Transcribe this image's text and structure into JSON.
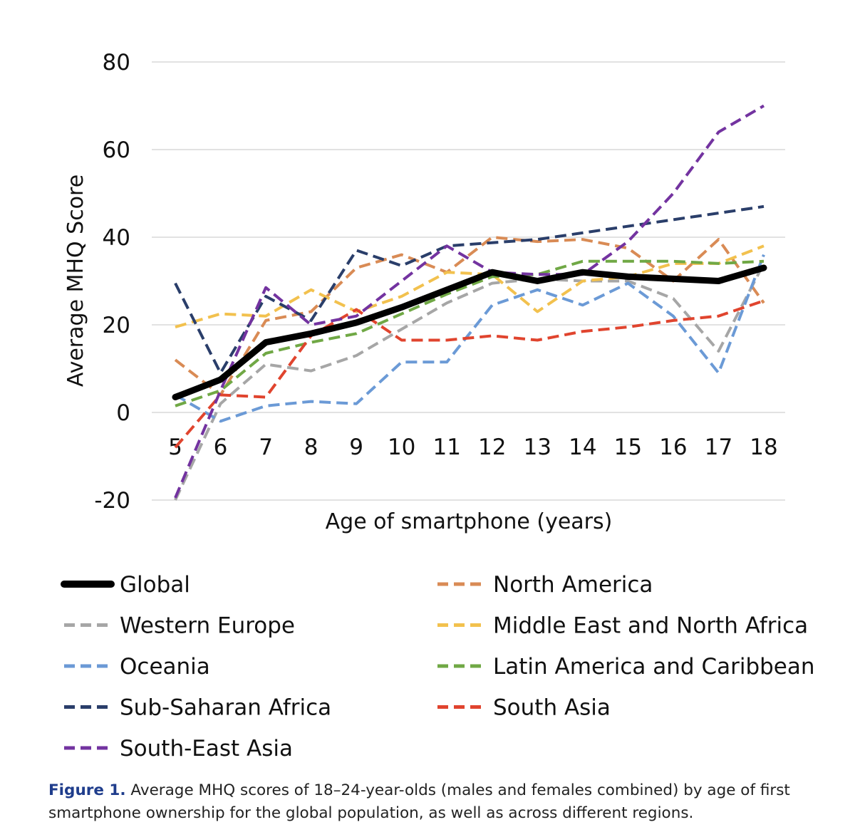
{
  "chart_data": {
    "type": "line",
    "title": "",
    "xlabel": "Age of smartphone (years)",
    "ylabel": "Average MHQ Score",
    "ylim": [
      -20,
      80
    ],
    "yticks": [
      -20,
      0,
      20,
      40,
      60,
      80
    ],
    "grid": true,
    "categories": [
      "5",
      "6",
      "7",
      "8",
      "9",
      "10",
      "11",
      "12",
      "13",
      "14",
      "15",
      "16",
      "17",
      "18"
    ],
    "series": [
      {
        "name": "Global",
        "color": "#000000",
        "dashed": false,
        "values": [
          3.5,
          7.5,
          16,
          18,
          20.5,
          24,
          28,
          32,
          30,
          32,
          31,
          30.5,
          30,
          33
        ]
      },
      {
        "name": "North America",
        "color": "#d98b55",
        "dashed": true,
        "values": [
          12,
          4,
          21,
          23,
          33,
          36,
          32,
          40,
          39,
          39.5,
          37.5,
          30,
          39.5,
          25
        ]
      },
      {
        "name": "Western Europe",
        "color": "#a6a6a6",
        "dashed": true,
        "values": [
          -20,
          2,
          11,
          9.5,
          13,
          19,
          25,
          29.5,
          30.5,
          30,
          30,
          26,
          14,
          34
        ]
      },
      {
        "name": "Middle East and North Africa",
        "color": "#f2c14e",
        "dashed": true,
        "values": [
          19.5,
          22.5,
          22,
          28,
          23,
          26.5,
          32,
          31.5,
          23,
          30,
          31,
          34,
          34,
          38
        ]
      },
      {
        "name": "Oceania",
        "color": "#6b9ad6",
        "dashed": true,
        "values": [
          4,
          -2,
          1.5,
          2.5,
          2,
          11.5,
          11.5,
          24.5,
          28,
          24.5,
          29.5,
          22,
          9,
          36
        ]
      },
      {
        "name": "Latin America and Caribbean",
        "color": "#70a845",
        "dashed": true,
        "values": [
          1.5,
          5,
          13.5,
          16,
          18,
          22.5,
          27,
          31,
          31.5,
          34.5,
          34.5,
          34.5,
          34,
          34.5
        ]
      },
      {
        "name": "Sub-Saharan Africa",
        "color": "#2a3e6a",
        "dashed": true,
        "values": [
          29.5,
          9,
          26.5,
          21,
          37,
          33.5,
          38,
          null,
          39.5,
          null,
          null,
          null,
          null,
          47
        ]
      },
      {
        "name": "South Asia",
        "color": "#e0442e",
        "dashed": true,
        "values": [
          -8,
          4,
          3.5,
          17.5,
          23.5,
          16.5,
          16.5,
          17.5,
          16.5,
          18.5,
          19.5,
          21,
          22,
          25.5
        ]
      },
      {
        "name": "South-East Asia",
        "color": "#7333a0",
        "dashed": true,
        "values": [
          -19.5,
          5,
          28.5,
          20,
          22,
          30,
          38,
          32,
          31.5,
          31.5,
          39,
          50,
          64,
          70
        ]
      }
    ],
    "legend_position": "bottom"
  },
  "caption": {
    "label": "Figure 1.",
    "text": " Average MHQ scores of 18–24-year-olds (males and females combined) by age of first smartphone ownership for the global population, as well as across different regions."
  }
}
